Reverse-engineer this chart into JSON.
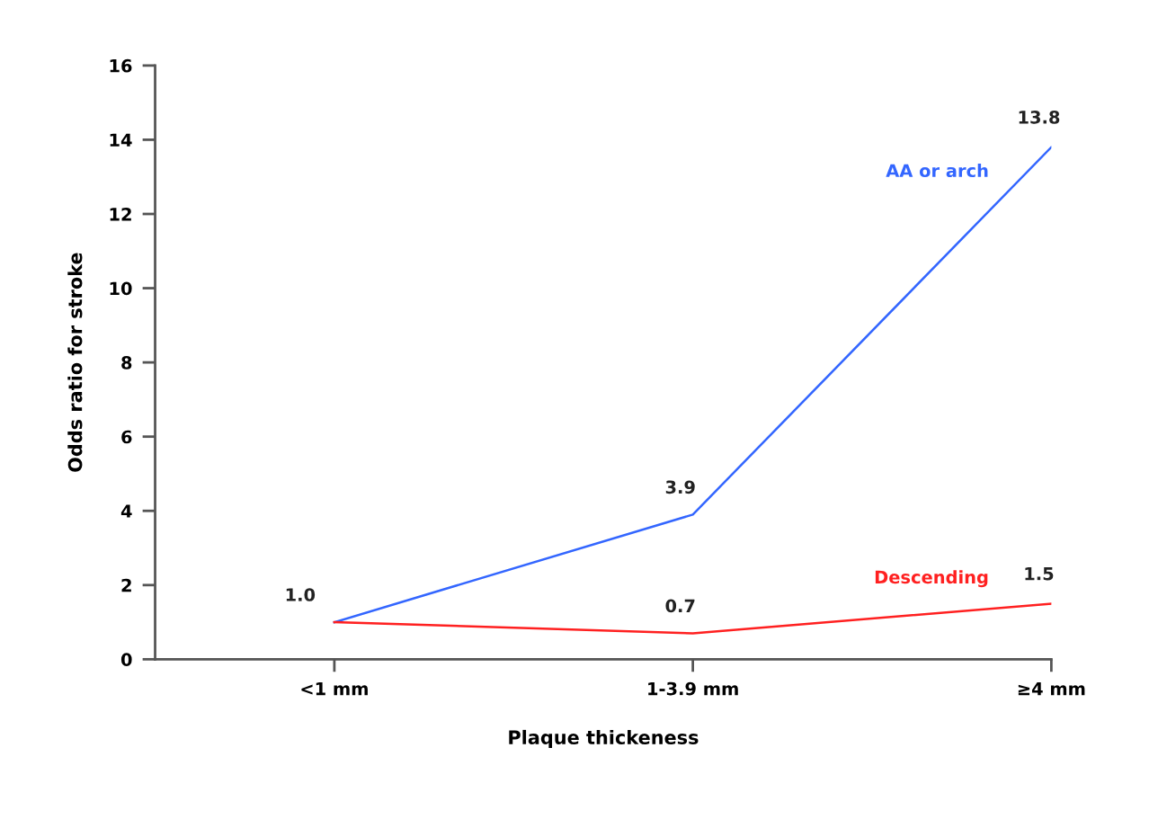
{
  "chart_data": {
    "type": "line",
    "xlabel": "Plaque thickeness",
    "ylabel": "Odds ratio for stroke",
    "categories": [
      "<1 mm",
      "1-3.9 mm",
      "≥4 mm"
    ],
    "series": [
      {
        "name": "AA or arch",
        "color": "#3366ff",
        "values": [
          1.0,
          3.9,
          13.8
        ],
        "value_labels": [
          "1.0",
          "3.9",
          "13.8"
        ]
      },
      {
        "name": "Descending",
        "color": "#ff2020",
        "values": [
          1.0,
          0.7,
          1.5
        ],
        "value_labels": [
          null,
          "0.7",
          "1.5"
        ]
      }
    ],
    "ylim": [
      0,
      16
    ],
    "yticks": [
      0,
      2,
      4,
      6,
      8,
      10,
      12,
      14,
      16
    ],
    "grid": false,
    "legend": false,
    "marker": "none",
    "line_style": "solid"
  }
}
